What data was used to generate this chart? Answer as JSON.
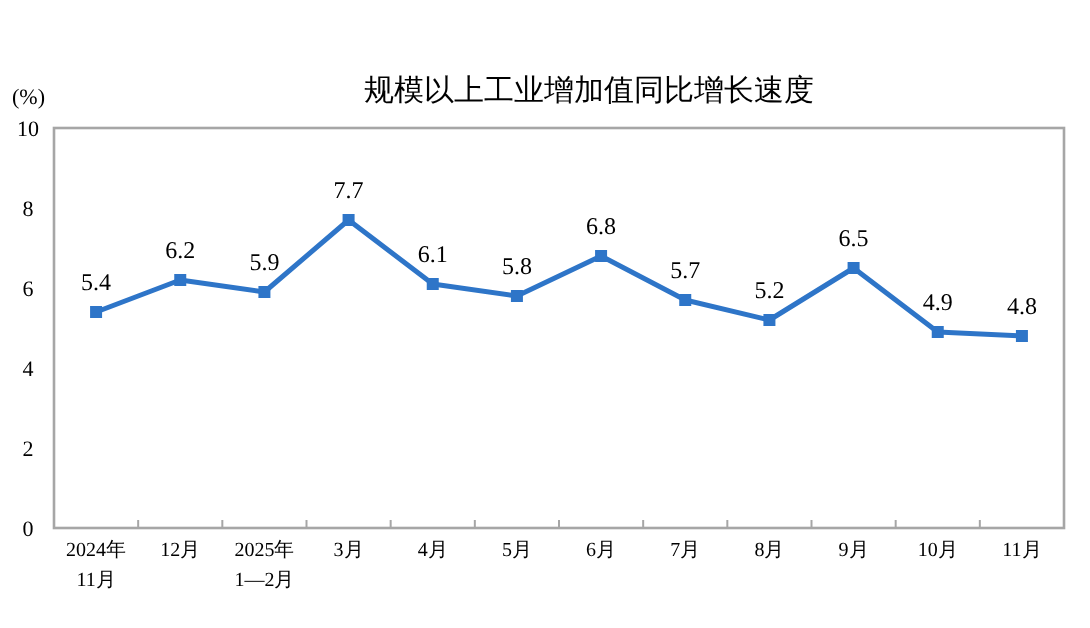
{
  "chart_data": {
    "type": "line",
    "title": "规模以上工业增加值同比增长速度",
    "ylabel": "(%)",
    "categories": [
      "2024年\n11月",
      "12月",
      "2025年\n1—2月",
      "3月",
      "4月",
      "5月",
      "6月",
      "7月",
      "8月",
      "9月",
      "10月",
      "11月"
    ],
    "series": [
      {
        "color": "#2e75c8",
        "values": [
          5.4,
          6.2,
          5.9,
          7.7,
          6.1,
          5.8,
          6.8,
          5.7,
          5.2,
          6.5,
          4.9,
          4.8
        ]
      }
    ],
    "ylim": [
      0,
      10
    ],
    "yticks": [
      0,
      2,
      4,
      6,
      8,
      10
    ],
    "grid": false,
    "marker": "square",
    "line_style": "solid",
    "data_labels": true
  }
}
